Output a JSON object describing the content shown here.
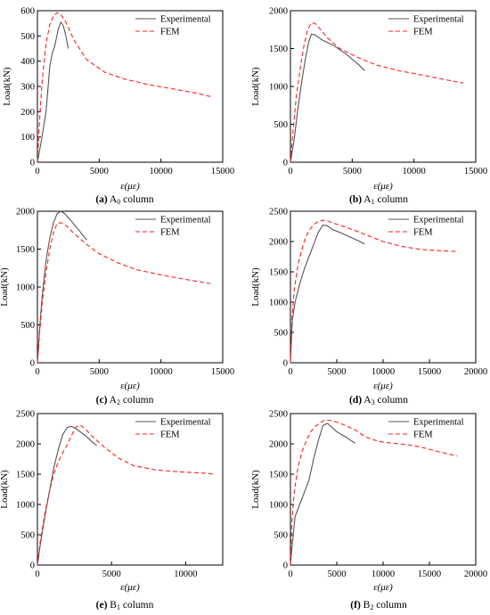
{
  "figure": {
    "panels": [
      {
        "caption_letter": "(a)",
        "caption_text": " A",
        "caption_sub": "0",
        "caption_tail": " column"
      },
      {
        "caption_letter": "(b)",
        "caption_text": " A",
        "caption_sub": "1",
        "caption_tail": " column"
      },
      {
        "caption_letter": "(c)",
        "caption_text": " A",
        "caption_sub": "2",
        "caption_tail": " column"
      },
      {
        "caption_letter": "(d)",
        "caption_text": " A",
        "caption_sub": "3",
        "caption_tail": " column"
      },
      {
        "caption_letter": "(e)",
        "caption_text": " B",
        "caption_sub": "1",
        "caption_tail": " column"
      },
      {
        "caption_letter": "(f)",
        "caption_text": " B",
        "caption_sub": "2",
        "caption_tail": " column"
      }
    ]
  },
  "colors": {
    "experimental": "#555555",
    "fem": "#ff2020"
  },
  "chart_data": [
    {
      "type": "line",
      "xlabel": "ε(με)",
      "ylabel": "Load(kN)",
      "xlim": [
        0,
        15000
      ],
      "ylim": [
        0,
        600
      ],
      "xticks": [
        0,
        5000,
        10000,
        15000
      ],
      "yticks": [
        0,
        100,
        200,
        300,
        400,
        500,
        600
      ],
      "legend": "top-right",
      "grid": false,
      "series": [
        {
          "name": "Experimental",
          "style": "solid",
          "x": [
            0,
            300,
            700,
            1000,
            1200,
            1400,
            1700,
            1900,
            2100,
            2300,
            2500
          ],
          "y": [
            0,
            80,
            200,
            380,
            430,
            460,
            530,
            555,
            540,
            500,
            450
          ]
        },
        {
          "name": "FEM",
          "style": "dashed",
          "x": [
            0,
            150,
            400,
            700,
            1000,
            1300,
            1600,
            1900,
            2300,
            3000,
            4000,
            5500,
            7000,
            9000,
            11000,
            13000,
            14000
          ],
          "y": [
            0,
            150,
            330,
            470,
            545,
            580,
            592,
            585,
            555,
            480,
            405,
            355,
            330,
            307,
            290,
            272,
            260
          ]
        }
      ]
    },
    {
      "type": "line",
      "xlabel": "ε(με)",
      "ylabel": "Load(kN)",
      "xlim": [
        0,
        15000
      ],
      "ylim": [
        0,
        2000
      ],
      "xticks": [
        0,
        5000,
        10000,
        15000
      ],
      "yticks": [
        0,
        500,
        1000,
        1500,
        2000
      ],
      "legend": "top-right",
      "grid": false,
      "series": [
        {
          "name": "Experimental",
          "style": "solid",
          "x": [
            0,
            300,
            600,
            900,
            1200,
            1500,
            1700,
            2000,
            2500,
            3500,
            4500,
            5500,
            6000
          ],
          "y": [
            0,
            300,
            700,
            1050,
            1350,
            1600,
            1690,
            1680,
            1620,
            1540,
            1430,
            1290,
            1210
          ]
        },
        {
          "name": "FEM",
          "style": "dashed",
          "x": [
            0,
            200,
            500,
            800,
            1100,
            1400,
            1700,
            2000,
            2500,
            3000,
            4000,
            5500,
            7000,
            9000,
            11000,
            12500,
            14000
          ],
          "y": [
            0,
            400,
            900,
            1250,
            1550,
            1750,
            1840,
            1830,
            1740,
            1640,
            1500,
            1380,
            1280,
            1200,
            1140,
            1090,
            1045
          ]
        }
      ]
    },
    {
      "type": "line",
      "xlabel": "ε(με)",
      "ylabel": "Load(kN)",
      "xlim": [
        0,
        15000
      ],
      "ylim": [
        0,
        2000
      ],
      "xticks": [
        0,
        5000,
        10000,
        15000
      ],
      "yticks": [
        0,
        500,
        1000,
        1500,
        2000
      ],
      "legend": "top-right",
      "grid": false,
      "series": [
        {
          "name": "Experimental",
          "style": "solid",
          "x": [
            0,
            200,
            400,
            700,
            1000,
            1300,
            1600,
            1900,
            2200,
            2700,
            3200,
            3700,
            4000
          ],
          "y": [
            0,
            500,
            900,
            1350,
            1650,
            1850,
            1970,
            2000,
            1970,
            1880,
            1780,
            1680,
            1620
          ]
        },
        {
          "name": "FEM",
          "style": "dashed",
          "x": [
            0,
            150,
            400,
            700,
            1000,
            1300,
            1600,
            1900,
            2400,
            3000,
            4000,
            5000,
            6500,
            8000,
            10000,
            12000,
            14000
          ],
          "y": [
            0,
            350,
            800,
            1200,
            1500,
            1720,
            1840,
            1850,
            1800,
            1700,
            1560,
            1440,
            1320,
            1230,
            1160,
            1100,
            1045
          ]
        }
      ]
    },
    {
      "type": "line",
      "xlabel": "ε(με)",
      "ylabel": "Load(kN)",
      "xlim": [
        0,
        20000
      ],
      "ylim": [
        0,
        2500
      ],
      "xticks": [
        0,
        5000,
        10000,
        15000,
        20000
      ],
      "yticks": [
        0,
        500,
        1000,
        1500,
        2000,
        2500
      ],
      "legend": "top-right",
      "grid": false,
      "series": [
        {
          "name": "Experimental",
          "style": "solid",
          "x": [
            0,
            200,
            500,
            1000,
            1500,
            2000,
            2500,
            3000,
            3500,
            4000,
            4500,
            5500,
            6500,
            7500,
            8000
          ],
          "y": [
            0,
            700,
            1000,
            1300,
            1550,
            1750,
            1950,
            2150,
            2270,
            2260,
            2200,
            2140,
            2070,
            2000,
            1960
          ]
        },
        {
          "name": "FEM",
          "style": "dashed",
          "x": [
            0,
            150,
            400,
            800,
            1200,
            1600,
            2000,
            2500,
            3000,
            3500,
            4000,
            4500,
            5500,
            7000,
            8500,
            10000,
            12000,
            14000,
            16000,
            18000
          ],
          "y": [
            0,
            700,
            1200,
            1600,
            1850,
            2050,
            2180,
            2280,
            2330,
            2350,
            2340,
            2310,
            2260,
            2180,
            2090,
            2000,
            1920,
            1870,
            1850,
            1835
          ]
        }
      ]
    },
    {
      "type": "line",
      "xlabel": "ε(με)",
      "ylabel": "Load(kN)",
      "xlim": [
        0,
        12500
      ],
      "ylim": [
        0,
        2500
      ],
      "xticks": [
        0,
        5000,
        10000
      ],
      "yticks": [
        0,
        500,
        1000,
        1500,
        2000,
        2500
      ],
      "legend": "top-right",
      "grid": false,
      "series": [
        {
          "name": "Experimental",
          "style": "solid",
          "x": [
            0,
            200,
            500,
            800,
            1100,
            1400,
            1700,
            2000,
            2300,
            2600,
            3000,
            3400,
            3800,
            4000
          ],
          "y": [
            0,
            350,
            800,
            1200,
            1600,
            1900,
            2150,
            2270,
            2290,
            2250,
            2180,
            2100,
            2010,
            1970
          ]
        },
        {
          "name": "FEM",
          "style": "dashed",
          "x": [
            0,
            200,
            500,
            800,
            1100,
            1400,
            1700,
            2000,
            2300,
            2600,
            2900,
            3300,
            3800,
            4500,
            5500,
            6500,
            8000,
            9500,
            11000,
            12000
          ],
          "y": [
            0,
            400,
            850,
            1200,
            1500,
            1700,
            1850,
            1980,
            2140,
            2280,
            2310,
            2230,
            2100,
            1950,
            1760,
            1640,
            1570,
            1540,
            1520,
            1500
          ]
        }
      ]
    },
    {
      "type": "line",
      "xlabel": "ε(με)",
      "ylabel": "Load(kN)",
      "xlim": [
        0,
        20000
      ],
      "ylim": [
        0,
        2500
      ],
      "xticks": [
        0,
        5000,
        10000,
        15000,
        20000
      ],
      "yticks": [
        0,
        500,
        1000,
        1500,
        2000,
        2500
      ],
      "legend": "top-right",
      "grid": false,
      "series": [
        {
          "name": "Experimental",
          "style": "solid",
          "x": [
            0,
            200,
            500,
            1000,
            1500,
            2000,
            2500,
            3000,
            3500,
            4000,
            4500,
            5000,
            6000,
            7000
          ],
          "y": [
            0,
            350,
            800,
            1000,
            1200,
            1400,
            1750,
            2050,
            2300,
            2340,
            2270,
            2200,
            2110,
            2010
          ]
        },
        {
          "name": "FEM",
          "style": "dashed",
          "x": [
            0,
            150,
            400,
            800,
            1200,
            1700,
            2200,
            2700,
            3200,
            3700,
            4200,
            5000,
            6000,
            7000,
            8000,
            9500,
            11000,
            12500,
            14000,
            16000,
            18000
          ],
          "y": [
            0,
            700,
            1200,
            1600,
            1850,
            2050,
            2200,
            2290,
            2350,
            2390,
            2390,
            2360,
            2300,
            2230,
            2120,
            2040,
            2010,
            1990,
            1950,
            1870,
            1800
          ]
        }
      ]
    }
  ]
}
